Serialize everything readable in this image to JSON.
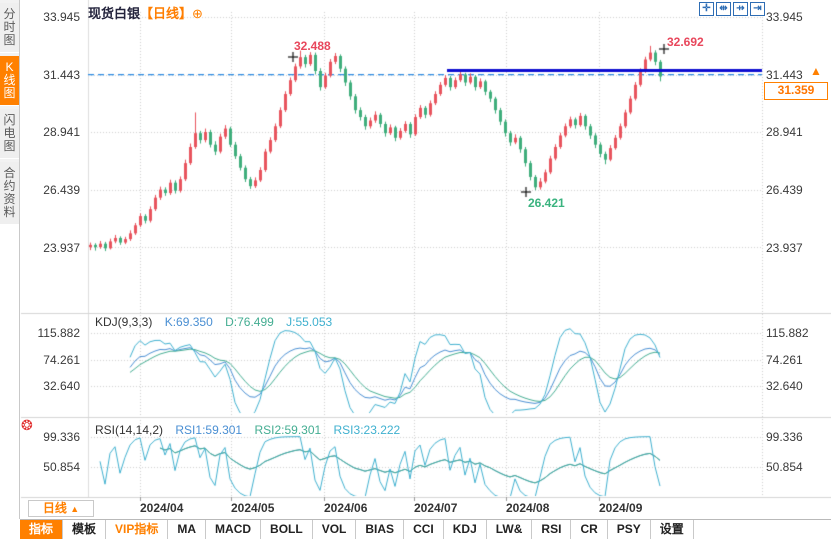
{
  "app": {
    "symbol": "现货白银",
    "period_bracket": "【日线】",
    "add_icon": "⊕"
  },
  "sidebar": {
    "items": [
      {
        "label": "分时图",
        "active": false
      },
      {
        "label": "K线图",
        "active": true
      },
      {
        "label": "闪电图",
        "active": false
      },
      {
        "label": "合约资料",
        "active": false
      }
    ]
  },
  "chart_toolbar": {
    "icons": [
      {
        "name": "crosshair-pan-icon",
        "glyph": "✛"
      },
      {
        "name": "zoom-x-icon",
        "glyph": "⇹"
      },
      {
        "name": "pan-x-icon",
        "glyph": "⇸"
      },
      {
        "name": "jump-latest-icon",
        "glyph": "⇥"
      }
    ]
  },
  "price_axis": {
    "ticks": [
      "33.945",
      "31.443",
      "28.941",
      "26.439",
      "23.937"
    ]
  },
  "x_axis": {
    "ticks": [
      "2024/04",
      "2024/05",
      "2024/06",
      "2024/07",
      "2024/08",
      "2024/09"
    ]
  },
  "annotations": {
    "swing_high_may": "32.488",
    "swing_high_sep": "32.692",
    "swing_low_aug": "26.421",
    "reference_price": "31.443",
    "current_price": "31.359"
  },
  "kdj": {
    "name": "KDJ(9,3,3)",
    "k": "K:69.350",
    "d": "D:76.499",
    "j": "J:55.053",
    "ticks": [
      "115.882",
      "74.261",
      "32.640"
    ]
  },
  "rsi": {
    "name": "RSI(14,14,2)",
    "rsi1": "RSI1:59.301",
    "rsi2": "RSI2:59.301",
    "rsi3": "RSI3:23.222",
    "ticks": [
      "99.336",
      "50.854"
    ]
  },
  "period_selector": {
    "label": "日线",
    "arrow": "▲"
  },
  "bottom_toolbar": {
    "tabs": [
      {
        "label": "指标",
        "active": true,
        "vip": false
      },
      {
        "label": "模板",
        "active": false,
        "vip": false
      },
      {
        "label": "VIP指标",
        "active": false,
        "vip": true
      },
      {
        "label": "MA",
        "active": false,
        "vip": false
      },
      {
        "label": "MACD",
        "active": false,
        "vip": false
      },
      {
        "label": "BOLL",
        "active": false,
        "vip": false
      },
      {
        "label": "VOL",
        "active": false,
        "vip": false
      },
      {
        "label": "BIAS",
        "active": false,
        "vip": false
      },
      {
        "label": "CCI",
        "active": false,
        "vip": false
      },
      {
        "label": "KDJ",
        "active": false,
        "vip": false
      },
      {
        "label": "LW&",
        "active": false,
        "vip": false
      },
      {
        "label": "RSI",
        "active": false,
        "vip": false
      },
      {
        "label": "CR",
        "active": false,
        "vip": false
      },
      {
        "label": "PSY",
        "active": false,
        "vip": false
      },
      {
        "label": "设置",
        "active": false,
        "vip": false
      }
    ]
  },
  "misc": {
    "sun_icon": "❂",
    "up_arrow": "▲"
  },
  "colors": {
    "up_candle": "#e8545e",
    "down_candle": "#3fae7c",
    "dashed_ref_line": "#2a8ae2",
    "trendline": "#0d0dd0",
    "accent_orange": "#ff8000",
    "k_line": "#4a8fd3",
    "d_line": "#44ad92",
    "j_line": "#3fb0cf",
    "annotation_red": "#e8475c",
    "annotation_green": "#3ab37f"
  },
  "chart_data": {
    "type": "candlestick",
    "symbol": "现货白银",
    "period": "日线",
    "price_tick_values": [
      33.945,
      31.443,
      28.941,
      26.439,
      23.937
    ],
    "kdj_tick_values": [
      115.882,
      74.261,
      32.64
    ],
    "rsi_tick_values": [
      99.336,
      50.854
    ],
    "x_month_labels": [
      "2024/04",
      "2024/05",
      "2024/06",
      "2024/07",
      "2024/08",
      "2024/09"
    ],
    "kdj_params": [
      9,
      3,
      3
    ],
    "rsi_params": [
      14,
      14,
      2
    ],
    "reference_price": 31.443,
    "trendline_price": 31.62,
    "current_price": 31.359,
    "candles": [
      [
        23.95,
        24.15,
        23.82,
        24.05
      ],
      [
        24.05,
        24.12,
        23.8,
        23.95
      ],
      [
        23.95,
        24.22,
        23.88,
        24.1
      ],
      [
        24.1,
        24.18,
        23.78,
        23.9
      ],
      [
        23.9,
        24.32,
        23.85,
        24.2
      ],
      [
        24.2,
        24.48,
        24.12,
        24.35
      ],
      [
        24.35,
        24.42,
        24.05,
        24.15
      ],
      [
        24.15,
        24.4,
        24.08,
        24.3
      ],
      [
        24.3,
        24.68,
        24.22,
        24.55
      ],
      [
        24.55,
        25.0,
        24.48,
        24.9
      ],
      [
        24.9,
        25.42,
        24.82,
        25.3
      ],
      [
        25.3,
        25.38,
        24.98,
        25.1
      ],
      [
        25.1,
        25.72,
        25.02,
        25.6
      ],
      [
        25.6,
        26.22,
        25.52,
        26.1
      ],
      [
        26.1,
        26.58,
        26.0,
        26.45
      ],
      [
        26.45,
        26.55,
        26.18,
        26.3
      ],
      [
        26.3,
        26.88,
        26.22,
        26.75
      ],
      [
        26.75,
        26.85,
        26.28,
        26.4
      ],
      [
        26.4,
        27.02,
        26.32,
        26.9
      ],
      [
        26.9,
        27.75,
        26.82,
        27.6
      ],
      [
        27.6,
        28.45,
        27.52,
        28.3
      ],
      [
        28.3,
        29.8,
        28.22,
        28.9
      ],
      [
        28.9,
        29.0,
        28.45,
        28.6
      ],
      [
        28.6,
        29.1,
        28.5,
        28.95
      ],
      [
        28.95,
        29.05,
        28.28,
        28.4
      ],
      [
        28.4,
        28.55,
        27.95,
        28.1
      ],
      [
        28.1,
        28.88,
        28.02,
        28.75
      ],
      [
        28.75,
        29.25,
        28.65,
        29.1
      ],
      [
        29.1,
        29.18,
        28.3,
        28.4
      ],
      [
        28.4,
        28.52,
        27.78,
        27.9
      ],
      [
        27.9,
        28.0,
        27.28,
        27.4
      ],
      [
        27.4,
        27.5,
        26.78,
        26.9
      ],
      [
        26.9,
        27.0,
        26.48,
        26.6
      ],
      [
        26.6,
        26.98,
        26.52,
        26.85
      ],
      [
        26.85,
        27.42,
        26.78,
        27.3
      ],
      [
        27.3,
        28.22,
        27.22,
        28.1
      ],
      [
        28.1,
        28.72,
        28.02,
        28.6
      ],
      [
        28.6,
        29.32,
        28.52,
        29.2
      ],
      [
        29.2,
        30.02,
        29.12,
        29.9
      ],
      [
        29.9,
        30.72,
        29.82,
        30.6
      ],
      [
        30.6,
        31.32,
        30.52,
        31.2
      ],
      [
        31.2,
        31.92,
        31.12,
        31.8
      ],
      [
        31.8,
        32.488,
        31.7,
        32.2
      ],
      [
        32.2,
        32.3,
        31.75,
        31.9
      ],
      [
        31.9,
        32.42,
        31.82,
        32.3
      ],
      [
        32.3,
        32.4,
        31.45,
        31.6
      ],
      [
        31.6,
        31.72,
        30.75,
        30.9
      ],
      [
        30.9,
        31.52,
        30.82,
        31.4
      ],
      [
        31.4,
        32.12,
        31.32,
        32.0
      ],
      [
        32.0,
        32.38,
        31.9,
        32.25
      ],
      [
        32.25,
        32.32,
        31.55,
        31.7
      ],
      [
        31.7,
        31.8,
        30.95,
        31.1
      ],
      [
        31.1,
        31.2,
        30.35,
        30.5
      ],
      [
        30.5,
        30.6,
        29.75,
        29.9
      ],
      [
        29.9,
        30.02,
        29.45,
        29.6
      ],
      [
        29.6,
        29.7,
        29.05,
        29.2
      ],
      [
        29.2,
        29.58,
        29.1,
        29.45
      ],
      [
        29.45,
        29.85,
        29.35,
        29.7
      ],
      [
        29.7,
        29.78,
        29.15,
        29.3
      ],
      [
        29.3,
        29.4,
        28.75,
        28.9
      ],
      [
        28.9,
        29.28,
        28.82,
        29.15
      ],
      [
        29.15,
        29.22,
        28.55,
        28.7
      ],
      [
        28.7,
        29.12,
        28.62,
        29.0
      ],
      [
        29.0,
        29.42,
        28.92,
        29.3
      ],
      [
        29.3,
        29.38,
        28.7,
        28.85
      ],
      [
        28.85,
        29.72,
        28.78,
        29.6
      ],
      [
        29.6,
        30.12,
        29.52,
        30.0
      ],
      [
        30.0,
        30.08,
        29.55,
        29.7
      ],
      [
        29.7,
        30.32,
        29.62,
        30.2
      ],
      [
        30.2,
        30.72,
        30.12,
        30.6
      ],
      [
        30.6,
        31.12,
        30.52,
        31.0
      ],
      [
        31.0,
        31.42,
        30.92,
        31.3
      ],
      [
        31.3,
        31.38,
        30.75,
        30.9
      ],
      [
        30.9,
        31.32,
        30.82,
        31.2
      ],
      [
        31.2,
        31.62,
        31.12,
        31.45
      ],
      [
        31.45,
        31.52,
        30.95,
        31.1
      ],
      [
        31.1,
        31.5,
        31.02,
        31.35
      ],
      [
        31.35,
        31.42,
        30.75,
        30.9
      ],
      [
        30.9,
        31.28,
        30.82,
        31.15
      ],
      [
        31.15,
        31.22,
        30.55,
        30.7
      ],
      [
        30.7,
        30.78,
        30.25,
        30.4
      ],
      [
        30.4,
        30.48,
        29.75,
        29.9
      ],
      [
        29.9,
        30.0,
        29.25,
        29.4
      ],
      [
        29.4,
        29.5,
        28.75,
        28.9
      ],
      [
        28.9,
        29.0,
        28.35,
        28.5
      ],
      [
        28.5,
        28.85,
        28.42,
        28.7
      ],
      [
        28.7,
        28.78,
        28.05,
        28.2
      ],
      [
        28.2,
        28.3,
        27.45,
        27.6
      ],
      [
        27.6,
        27.7,
        26.85,
        27.0
      ],
      [
        27.0,
        27.08,
        26.421,
        26.55
      ],
      [
        26.55,
        26.95,
        26.45,
        26.8
      ],
      [
        26.8,
        27.32,
        26.72,
        27.2
      ],
      [
        27.2,
        27.92,
        27.12,
        27.8
      ],
      [
        27.8,
        28.42,
        27.72,
        28.3
      ],
      [
        28.3,
        28.92,
        28.22,
        28.8
      ],
      [
        28.8,
        29.32,
        28.72,
        29.2
      ],
      [
        29.2,
        29.62,
        29.12,
        29.5
      ],
      [
        29.5,
        29.58,
        29.1,
        29.25
      ],
      [
        29.25,
        29.78,
        29.18,
        29.65
      ],
      [
        29.65,
        29.72,
        29.05,
        29.2
      ],
      [
        29.2,
        29.3,
        28.65,
        28.8
      ],
      [
        28.8,
        28.9,
        28.25,
        28.4
      ],
      [
        28.4,
        28.5,
        27.85,
        28.0
      ],
      [
        28.0,
        28.1,
        27.55,
        27.75
      ],
      [
        27.75,
        28.38,
        27.68,
        28.25
      ],
      [
        28.25,
        28.82,
        28.18,
        28.7
      ],
      [
        28.7,
        29.32,
        28.62,
        29.2
      ],
      [
        29.2,
        29.92,
        29.12,
        29.8
      ],
      [
        29.8,
        30.52,
        29.72,
        30.4
      ],
      [
        30.4,
        31.12,
        30.32,
        31.0
      ],
      [
        31.0,
        31.72,
        30.92,
        31.6
      ],
      [
        31.6,
        32.22,
        31.52,
        32.1
      ],
      [
        32.1,
        32.692,
        32.02,
        32.4
      ],
      [
        32.4,
        32.5,
        31.85,
        32.0
      ],
      [
        32.0,
        32.08,
        31.15,
        31.359
      ]
    ]
  }
}
